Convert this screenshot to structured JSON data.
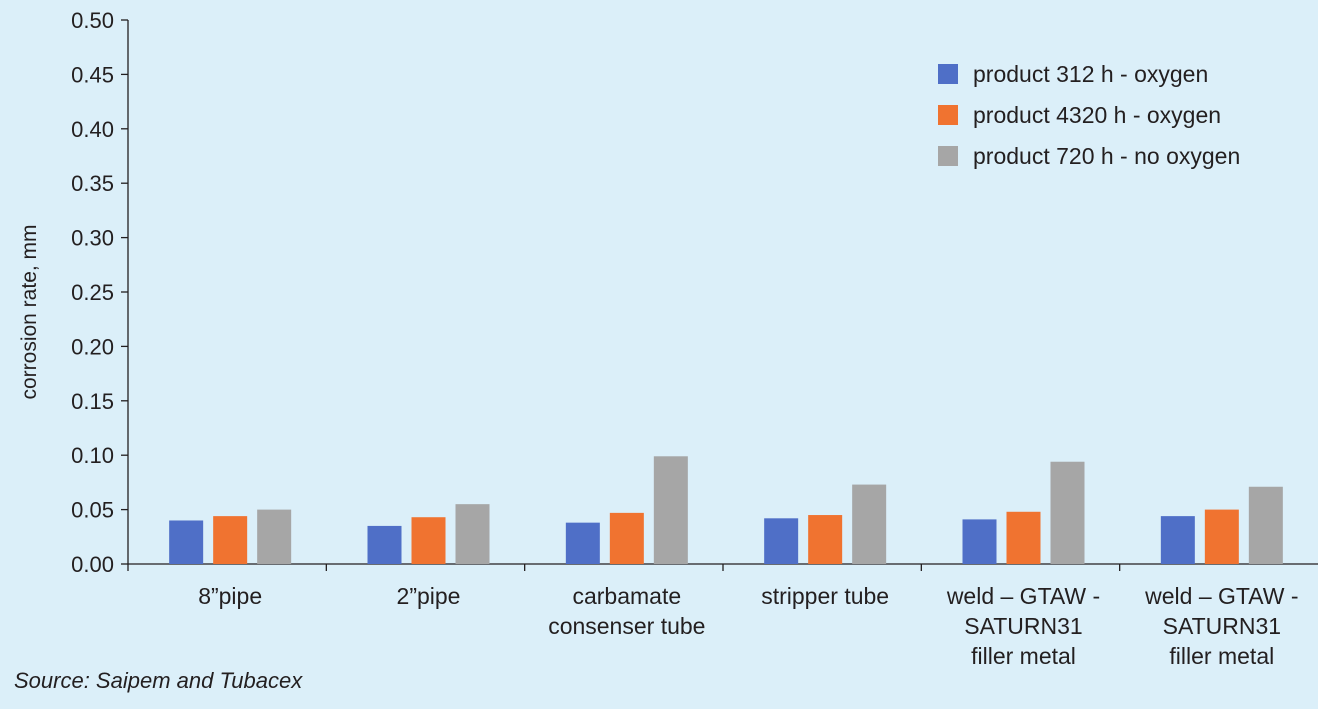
{
  "chart_data": {
    "type": "bar",
    "ylabel": "corrosion rate, mm",
    "ylim": [
      0,
      0.5
    ],
    "yticks": [
      "0.00",
      "0.05",
      "0.10",
      "0.15",
      "0.20",
      "0.25",
      "0.30",
      "0.35",
      "0.40",
      "0.45",
      "0.50"
    ],
    "categories": [
      [
        "8”pipe"
      ],
      [
        "2”pipe"
      ],
      [
        "carbamate",
        "consenser tube"
      ],
      [
        "stripper tube"
      ],
      [
        "weld – GTAW -",
        "SATURN31",
        "filler metal"
      ],
      [
        "weld – GTAW -",
        "SATURN31",
        "filler metal"
      ]
    ],
    "series": [
      {
        "name": "product 312 h - oxygen",
        "color": "#4f6fc7",
        "values": [
          0.04,
          0.035,
          0.038,
          0.042,
          0.041,
          0.044
        ]
      },
      {
        "name": "product 4320 h - oxygen",
        "color": "#f07330",
        "values": [
          0.044,
          0.043,
          0.047,
          0.045,
          0.048,
          0.05
        ]
      },
      {
        "name": "product 720 h - no oxygen",
        "color": "#a6a6a6",
        "values": [
          0.05,
          0.055,
          0.099,
          0.073,
          0.094,
          0.071
        ]
      }
    ],
    "legend_position": "top-right",
    "grid": false
  },
  "source": "Source: Saipem and Tubacex"
}
